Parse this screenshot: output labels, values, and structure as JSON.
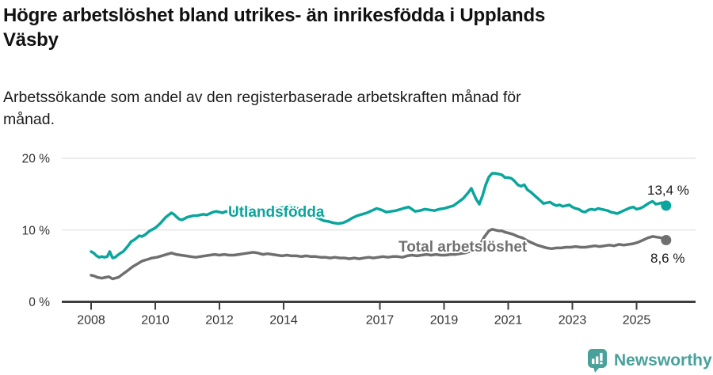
{
  "header": {
    "title": "Högre arbetslöshet bland utrikes- än inrikesfödda i Upplands Väsby",
    "subtitle": "Arbetssökande som andel av den registerbaserade arbetskraften månad för månad."
  },
  "footer": {
    "brand": "Newsworthy"
  },
  "colors": {
    "line_utlandsfodda": "#0aa59c",
    "line_total": "#6f6f6f",
    "axis": "#3e3e3e",
    "grid": "#dadada",
    "text": "#1a1a1a",
    "brand": "#48a19a"
  },
  "chart_data": {
    "type": "line",
    "title": "Högre arbetslöshet bland utrikes- än inrikesfödda i Upplands Väsby",
    "subtitle": "Arbetssökande som andel av den registerbaserade arbetskraften månad för månad.",
    "y_unit": "%",
    "ylim": [
      0,
      20
    ],
    "xlim": [
      2008,
      2026
    ],
    "grid": "horizontal-only",
    "legend_position": "inline-labels",
    "y_ticks": [
      {
        "value": 0,
        "label": "0 %"
      },
      {
        "value": 10,
        "label": "10 %"
      },
      {
        "value": 20,
        "label": "20 %"
      }
    ],
    "x_ticks": [
      {
        "value": 2008,
        "label": "2008"
      },
      {
        "value": 2010,
        "label": "2010"
      },
      {
        "value": 2012,
        "label": "2012"
      },
      {
        "value": 2014,
        "label": "2014"
      },
      {
        "value": 2017,
        "label": "2017"
      },
      {
        "value": 2019,
        "label": "2019"
      },
      {
        "value": 2021,
        "label": "2021"
      },
      {
        "value": 2023,
        "label": "2023"
      },
      {
        "value": 2025,
        "label": "2025"
      }
    ],
    "series": [
      {
        "name": "Utlandsfödda",
        "color": "#0aa59c",
        "end_label": "13,4 %",
        "end_value": 13.4,
        "points": [
          [
            2008.0,
            7.0
          ],
          [
            2008.08,
            6.8
          ],
          [
            2008.17,
            6.4
          ],
          [
            2008.25,
            6.2
          ],
          [
            2008.33,
            6.3
          ],
          [
            2008.42,
            6.2
          ],
          [
            2008.5,
            6.3
          ],
          [
            2008.58,
            7.0
          ],
          [
            2008.67,
            6.1
          ],
          [
            2008.75,
            6.2
          ],
          [
            2008.83,
            6.5
          ],
          [
            2008.92,
            6.8
          ],
          [
            2009.0,
            7.0
          ],
          [
            2009.08,
            7.4
          ],
          [
            2009.17,
            7.9
          ],
          [
            2009.25,
            8.4
          ],
          [
            2009.33,
            8.6
          ],
          [
            2009.42,
            8.9
          ],
          [
            2009.5,
            9.2
          ],
          [
            2009.58,
            9.1
          ],
          [
            2009.67,
            9.3
          ],
          [
            2009.75,
            9.6
          ],
          [
            2009.83,
            9.9
          ],
          [
            2009.92,
            10.1
          ],
          [
            2010.0,
            10.3
          ],
          [
            2010.08,
            10.6
          ],
          [
            2010.17,
            11.0
          ],
          [
            2010.25,
            11.4
          ],
          [
            2010.33,
            11.8
          ],
          [
            2010.42,
            12.1
          ],
          [
            2010.5,
            12.4
          ],
          [
            2010.58,
            12.2
          ],
          [
            2010.67,
            11.8
          ],
          [
            2010.75,
            11.5
          ],
          [
            2010.83,
            11.4
          ],
          [
            2010.92,
            11.6
          ],
          [
            2011.0,
            11.8
          ],
          [
            2011.1,
            11.9
          ],
          [
            2011.2,
            12.0
          ],
          [
            2011.3,
            12.0
          ],
          [
            2011.4,
            12.1
          ],
          [
            2011.5,
            12.2
          ],
          [
            2011.6,
            12.1
          ],
          [
            2011.7,
            12.3
          ],
          [
            2011.8,
            12.5
          ],
          [
            2011.9,
            12.6
          ],
          [
            2012.0,
            12.5
          ],
          [
            2012.1,
            12.4
          ],
          [
            2012.2,
            12.6
          ],
          [
            2012.3,
            12.5
          ],
          [
            2012.45,
            12.6
          ],
          [
            2012.6,
            12.7
          ],
          [
            2012.75,
            12.9
          ],
          [
            2012.9,
            13.0
          ],
          [
            2013.05,
            12.9
          ],
          [
            2013.2,
            12.8
          ],
          [
            2013.35,
            12.9
          ],
          [
            2013.5,
            12.8
          ],
          [
            2013.65,
            12.9
          ],
          [
            2013.8,
            13.0
          ],
          [
            2013.95,
            13.1
          ],
          [
            2014.1,
            13.3
          ],
          [
            2014.2,
            13.4
          ],
          [
            2014.35,
            13.1
          ],
          [
            2014.5,
            12.9
          ],
          [
            2014.65,
            12.6
          ],
          [
            2014.8,
            12.3
          ],
          [
            2014.95,
            11.9
          ],
          [
            2015.1,
            11.6
          ],
          [
            2015.25,
            11.3
          ],
          [
            2015.4,
            11.2
          ],
          [
            2015.55,
            11.0
          ],
          [
            2015.7,
            10.9
          ],
          [
            2015.85,
            11.0
          ],
          [
            2016.0,
            11.3
          ],
          [
            2016.15,
            11.7
          ],
          [
            2016.3,
            12.0
          ],
          [
            2016.45,
            12.2
          ],
          [
            2016.6,
            12.4
          ],
          [
            2016.75,
            12.7
          ],
          [
            2016.9,
            13.0
          ],
          [
            2017.05,
            12.8
          ],
          [
            2017.2,
            12.5
          ],
          [
            2017.35,
            12.6
          ],
          [
            2017.5,
            12.7
          ],
          [
            2017.65,
            12.9
          ],
          [
            2017.8,
            13.1
          ],
          [
            2017.9,
            13.2
          ],
          [
            2018.0,
            12.9
          ],
          [
            2018.1,
            12.6
          ],
          [
            2018.25,
            12.7
          ],
          [
            2018.4,
            12.9
          ],
          [
            2018.55,
            12.8
          ],
          [
            2018.7,
            12.7
          ],
          [
            2018.85,
            12.9
          ],
          [
            2019.0,
            13.0
          ],
          [
            2019.15,
            13.2
          ],
          [
            2019.3,
            13.4
          ],
          [
            2019.45,
            13.9
          ],
          [
            2019.6,
            14.4
          ],
          [
            2019.75,
            15.2
          ],
          [
            2019.85,
            15.8
          ],
          [
            2020.0,
            14.3
          ],
          [
            2020.1,
            13.6
          ],
          [
            2020.2,
            14.8
          ],
          [
            2020.3,
            16.3
          ],
          [
            2020.4,
            17.4
          ],
          [
            2020.5,
            17.9
          ],
          [
            2020.6,
            17.9
          ],
          [
            2020.7,
            17.8
          ],
          [
            2020.8,
            17.7
          ],
          [
            2020.9,
            17.3
          ],
          [
            2021.0,
            17.3
          ],
          [
            2021.1,
            17.2
          ],
          [
            2021.2,
            16.8
          ],
          [
            2021.3,
            16.3
          ],
          [
            2021.4,
            16.1
          ],
          [
            2021.5,
            16.3
          ],
          [
            2021.6,
            15.6
          ],
          [
            2021.7,
            15.3
          ],
          [
            2021.8,
            14.9
          ],
          [
            2021.9,
            14.5
          ],
          [
            2022.0,
            14.1
          ],
          [
            2022.1,
            13.7
          ],
          [
            2022.2,
            13.8
          ],
          [
            2022.3,
            13.9
          ],
          [
            2022.4,
            13.6
          ],
          [
            2022.5,
            13.4
          ],
          [
            2022.6,
            13.5
          ],
          [
            2022.7,
            13.3
          ],
          [
            2022.8,
            13.4
          ],
          [
            2022.9,
            13.5
          ],
          [
            2023.0,
            13.2
          ],
          [
            2023.1,
            13.0
          ],
          [
            2023.2,
            12.9
          ],
          [
            2023.3,
            12.6
          ],
          [
            2023.4,
            12.5
          ],
          [
            2023.5,
            12.8
          ],
          [
            2023.6,
            12.9
          ],
          [
            2023.7,
            12.8
          ],
          [
            2023.8,
            13.0
          ],
          [
            2023.9,
            12.9
          ],
          [
            2024.0,
            12.8
          ],
          [
            2024.1,
            12.7
          ],
          [
            2024.2,
            12.5
          ],
          [
            2024.3,
            12.4
          ],
          [
            2024.4,
            12.3
          ],
          [
            2024.5,
            12.5
          ],
          [
            2024.6,
            12.7
          ],
          [
            2024.7,
            12.9
          ],
          [
            2024.8,
            13.1
          ],
          [
            2024.9,
            13.2
          ],
          [
            2025.0,
            12.9
          ],
          [
            2025.1,
            13.0
          ],
          [
            2025.2,
            13.2
          ],
          [
            2025.3,
            13.5
          ],
          [
            2025.4,
            13.8
          ],
          [
            2025.5,
            14.0
          ],
          [
            2025.6,
            13.6
          ],
          [
            2025.7,
            13.7
          ],
          [
            2025.78,
            13.8
          ],
          [
            2025.85,
            13.5
          ],
          [
            2025.92,
            13.4
          ]
        ]
      },
      {
        "name": "Total arbetslöshet",
        "color": "#6f6f6f",
        "end_label": "8,6 %",
        "end_value": 8.6,
        "points": [
          [
            2008.0,
            3.7
          ],
          [
            2008.1,
            3.6
          ],
          [
            2008.2,
            3.4
          ],
          [
            2008.33,
            3.3
          ],
          [
            2008.45,
            3.4
          ],
          [
            2008.55,
            3.5
          ],
          [
            2008.67,
            3.2
          ],
          [
            2008.75,
            3.3
          ],
          [
            2008.85,
            3.4
          ],
          [
            2009.0,
            3.9
          ],
          [
            2009.15,
            4.4
          ],
          [
            2009.3,
            4.9
          ],
          [
            2009.45,
            5.3
          ],
          [
            2009.6,
            5.7
          ],
          [
            2009.75,
            5.9
          ],
          [
            2009.9,
            6.1
          ],
          [
            2010.05,
            6.2
          ],
          [
            2010.2,
            6.4
          ],
          [
            2010.35,
            6.6
          ],
          [
            2010.5,
            6.8
          ],
          [
            2010.65,
            6.6
          ],
          [
            2010.8,
            6.5
          ],
          [
            2010.95,
            6.4
          ],
          [
            2011.1,
            6.3
          ],
          [
            2011.25,
            6.2
          ],
          [
            2011.4,
            6.3
          ],
          [
            2011.55,
            6.4
          ],
          [
            2011.7,
            6.5
          ],
          [
            2011.85,
            6.6
          ],
          [
            2012.0,
            6.5
          ],
          [
            2012.15,
            6.6
          ],
          [
            2012.3,
            6.5
          ],
          [
            2012.45,
            6.5
          ],
          [
            2012.6,
            6.6
          ],
          [
            2012.75,
            6.7
          ],
          [
            2012.9,
            6.8
          ],
          [
            2013.05,
            6.9
          ],
          [
            2013.2,
            6.8
          ],
          [
            2013.35,
            6.6
          ],
          [
            2013.5,
            6.7
          ],
          [
            2013.65,
            6.6
          ],
          [
            2013.8,
            6.5
          ],
          [
            2013.95,
            6.4
          ],
          [
            2014.1,
            6.5
          ],
          [
            2014.25,
            6.4
          ],
          [
            2014.4,
            6.4
          ],
          [
            2014.55,
            6.3
          ],
          [
            2014.7,
            6.4
          ],
          [
            2014.85,
            6.3
          ],
          [
            2015.0,
            6.3
          ],
          [
            2015.15,
            6.2
          ],
          [
            2015.3,
            6.2
          ],
          [
            2015.45,
            6.1
          ],
          [
            2015.6,
            6.2
          ],
          [
            2015.75,
            6.1
          ],
          [
            2015.9,
            6.1
          ],
          [
            2016.05,
            6.0
          ],
          [
            2016.2,
            6.1
          ],
          [
            2016.35,
            6.0
          ],
          [
            2016.5,
            6.1
          ],
          [
            2016.65,
            6.2
          ],
          [
            2016.8,
            6.1
          ],
          [
            2016.95,
            6.2
          ],
          [
            2017.1,
            6.3
          ],
          [
            2017.25,
            6.2
          ],
          [
            2017.4,
            6.3
          ],
          [
            2017.55,
            6.3
          ],
          [
            2017.7,
            6.2
          ],
          [
            2017.85,
            6.4
          ],
          [
            2018.0,
            6.5
          ],
          [
            2018.15,
            6.4
          ],
          [
            2018.3,
            6.5
          ],
          [
            2018.45,
            6.6
          ],
          [
            2018.6,
            6.5
          ],
          [
            2018.75,
            6.6
          ],
          [
            2018.9,
            6.5
          ],
          [
            2019.05,
            6.5
          ],
          [
            2019.2,
            6.6
          ],
          [
            2019.35,
            6.6
          ],
          [
            2019.5,
            6.7
          ],
          [
            2019.65,
            6.8
          ],
          [
            2019.8,
            7.0
          ],
          [
            2019.95,
            7.1
          ],
          [
            2020.1,
            7.8
          ],
          [
            2020.25,
            9.0
          ],
          [
            2020.4,
            9.9
          ],
          [
            2020.5,
            10.1
          ],
          [
            2020.6,
            10.0
          ],
          [
            2020.7,
            9.9
          ],
          [
            2020.8,
            9.9
          ],
          [
            2020.9,
            9.7
          ],
          [
            2021.0,
            9.6
          ],
          [
            2021.15,
            9.4
          ],
          [
            2021.3,
            9.1
          ],
          [
            2021.45,
            8.9
          ],
          [
            2021.6,
            8.5
          ],
          [
            2021.75,
            8.2
          ],
          [
            2021.9,
            7.9
          ],
          [
            2022.05,
            7.7
          ],
          [
            2022.2,
            7.5
          ],
          [
            2022.35,
            7.4
          ],
          [
            2022.5,
            7.5
          ],
          [
            2022.65,
            7.5
          ],
          [
            2022.8,
            7.6
          ],
          [
            2022.95,
            7.6
          ],
          [
            2023.1,
            7.7
          ],
          [
            2023.25,
            7.6
          ],
          [
            2023.4,
            7.6
          ],
          [
            2023.55,
            7.7
          ],
          [
            2023.7,
            7.8
          ],
          [
            2023.85,
            7.7
          ],
          [
            2024.0,
            7.8
          ],
          [
            2024.15,
            7.9
          ],
          [
            2024.3,
            7.8
          ],
          [
            2024.45,
            8.0
          ],
          [
            2024.6,
            7.9
          ],
          [
            2024.75,
            8.0
          ],
          [
            2024.9,
            8.1
          ],
          [
            2025.05,
            8.3
          ],
          [
            2025.2,
            8.6
          ],
          [
            2025.35,
            8.9
          ],
          [
            2025.5,
            9.1
          ],
          [
            2025.65,
            9.0
          ],
          [
            2025.78,
            8.9
          ],
          [
            2025.92,
            8.6
          ]
        ]
      }
    ]
  }
}
